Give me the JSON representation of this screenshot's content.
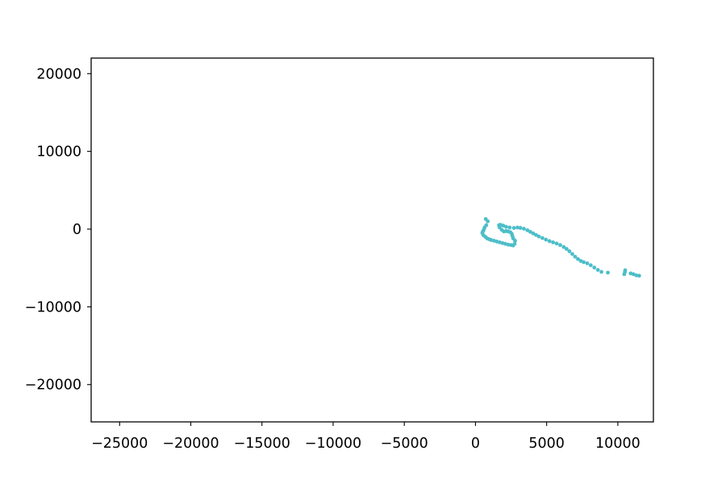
{
  "chart_data": {
    "type": "scatter",
    "title": "",
    "xlabel": "",
    "ylabel": "",
    "xlim": [
      -27000,
      12500
    ],
    "ylim": [
      -24800,
      22000
    ],
    "grid": false,
    "xticks": [
      -25000,
      -20000,
      -15000,
      -10000,
      -5000,
      0,
      5000,
      10000
    ],
    "xtick_labels": [
      "−25000",
      "−20000",
      "−15000",
      "−10000",
      "−5000",
      "0",
      "5000",
      "10000"
    ],
    "yticks": [
      20000,
      10000,
      0,
      -10000,
      -20000
    ],
    "ytick_labels": [
      "20000",
      "10000",
      "0",
      "−10000",
      "−20000"
    ],
    "series": [
      {
        "color": "#4dbec9",
        "x": [
          720,
          860,
          760,
          640,
          580,
          520,
          480,
          560,
          700,
          820,
          960,
          1100,
          1300,
          1500,
          1700,
          1900,
          2100,
          2300,
          2500,
          2650,
          2750,
          2780,
          2650,
          2600,
          2550,
          2450,
          2300,
          2150,
          2000,
          1850,
          1700,
          1650,
          1750,
          1950,
          2150,
          2400,
          2700,
          2950,
          3150,
          3400,
          3650,
          3850,
          4050,
          4250,
          4450,
          4700,
          4950,
          5200,
          5450,
          5700,
          5950,
          6200,
          6400,
          6600,
          6800,
          7000,
          7200,
          7400,
          7600,
          7850,
          8100,
          8350,
          8600,
          8850,
          9300,
          10450,
          10500,
          10520,
          10900,
          11100,
          11300,
          11500
        ],
        "y": [
          1300,
          1000,
          500,
          200,
          -100,
          -300,
          -500,
          -800,
          -1000,
          -1200,
          -1300,
          -1400,
          -1500,
          -1600,
          -1700,
          -1800,
          -1900,
          -2000,
          -2050,
          -2100,
          -1900,
          -1500,
          -1200,
          -900,
          -600,
          -400,
          -300,
          -250,
          -300,
          -100,
          200,
          500,
          550,
          450,
          300,
          200,
          150,
          200,
          150,
          50,
          -150,
          -350,
          -550,
          -750,
          -950,
          -1150,
          -1350,
          -1550,
          -1700,
          -1850,
          -2050,
          -2300,
          -2550,
          -2850,
          -3200,
          -3550,
          -3850,
          -4100,
          -4250,
          -4400,
          -4650,
          -4950,
          -5250,
          -5500,
          -5600,
          -5800,
          -5500,
          -5300,
          -5700,
          -5800,
          -5950,
          -6000
        ]
      }
    ]
  }
}
